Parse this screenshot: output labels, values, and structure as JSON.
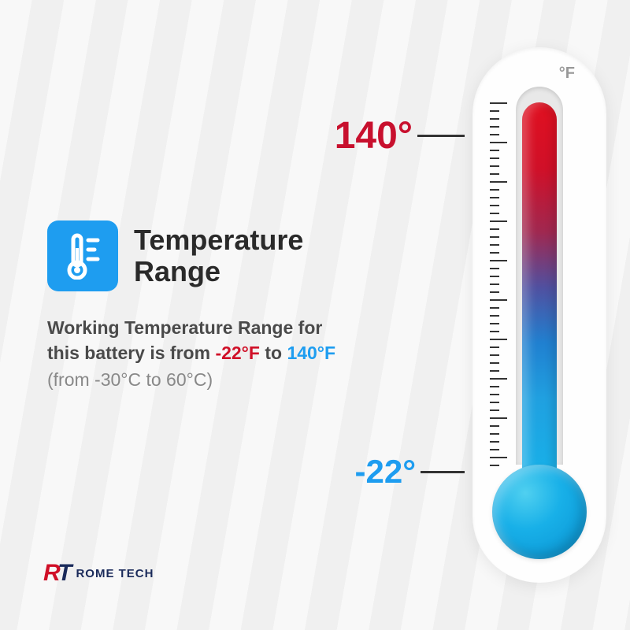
{
  "title": "Temperature\nRange",
  "icon_bg": "#1e9df0",
  "desc_prefix": "Working Temperature Range for this battery is from ",
  "low_f": "-22°F",
  "desc_mid": " to ",
  "high_f": "140°F",
  "celsius_note": "(from -30°C to 60°C)",
  "thermometer": {
    "type": "thermometer-infographic",
    "unit": "°F",
    "high_label": "140°",
    "low_label": "-22°",
    "high_color": "#c8102e",
    "low_color": "#1e9df0",
    "gradient_stops": [
      "#e01020",
      "#d01028",
      "#a02850",
      "#5050a0",
      "#2080d0",
      "#20a0e0",
      "#18b0e8"
    ],
    "bulb_color": "#18b0e8",
    "body_bg": "#fefefe",
    "tick_color": "#333333",
    "tick_count": 47,
    "major_every": 5
  },
  "logo": {
    "mark_r": "R",
    "mark_t": "T",
    "text": "ROME TECH",
    "r_color": "#d01028",
    "t_color": "#1a2a5a"
  },
  "background": "#f5f5f5"
}
